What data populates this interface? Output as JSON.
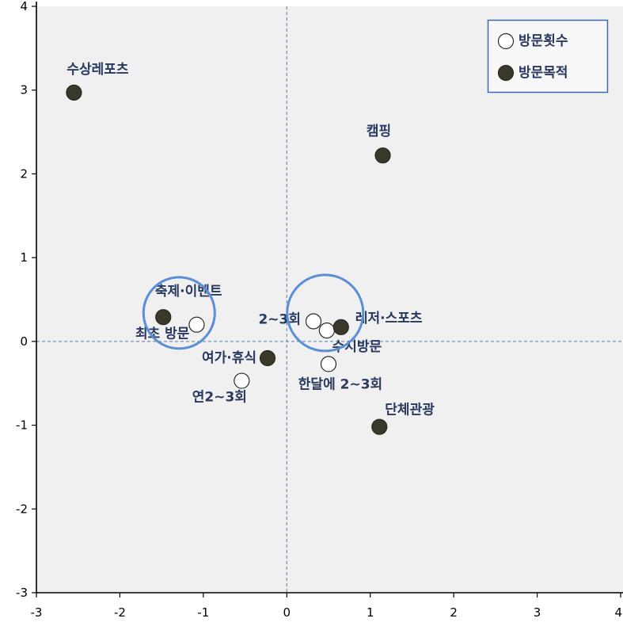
{
  "chart_data": {
    "type": "scatter",
    "xlim": [
      -3,
      4
    ],
    "ylim": [
      -3,
      4
    ],
    "xticks": [
      -3,
      -2,
      -1,
      0,
      1,
      2,
      3,
      4
    ],
    "yticks": [
      -3,
      -2,
      -1,
      0,
      1,
      2,
      3,
      4
    ],
    "grid": false,
    "reference_lines": {
      "x": 0,
      "y": 0,
      "dashed": true
    },
    "legend": "top-right",
    "series": [
      {
        "name": "방문횟수",
        "marker_fill": "#ffffff",
        "marker_stroke": "#2b2b2b",
        "points": [
          {
            "label": "최초 방문",
            "x": -1.08,
            "y": 0.2
          },
          {
            "label": "2~3회",
            "x": 0.32,
            "y": 0.24
          },
          {
            "label": "수시방문",
            "x": 0.48,
            "y": 0.13
          },
          {
            "label": "한달에 2~3회",
            "x": 0.5,
            "y": -0.27
          },
          {
            "label": "연2~3회",
            "x": -0.54,
            "y": -0.47
          }
        ]
      },
      {
        "name": "방문목적",
        "marker_fill": "#3a3828",
        "marker_stroke": "#2a2820",
        "points": [
          {
            "label": "수상레포츠",
            "x": -2.55,
            "y": 2.97
          },
          {
            "label": "캠핑",
            "x": 1.15,
            "y": 2.22
          },
          {
            "label": "축제·이벤트",
            "x": -1.48,
            "y": 0.29
          },
          {
            "label": "레저·스포츠",
            "x": 0.65,
            "y": 0.17
          },
          {
            "label": "여가·휴식",
            "x": -0.23,
            "y": -0.2
          },
          {
            "label": "단체관광",
            "x": 1.11,
            "y": -1.02
          }
        ]
      }
    ],
    "colors": {
      "plot_background": "#f0f0f0",
      "axis": "#000000",
      "tick_text": "#000000",
      "label_text": "#28395f",
      "reference_line": "#7590b8",
      "highlight_circle": "#5b8ed6",
      "legend_border": "#3e66ae",
      "legend_background": "#f7f7f7"
    }
  }
}
